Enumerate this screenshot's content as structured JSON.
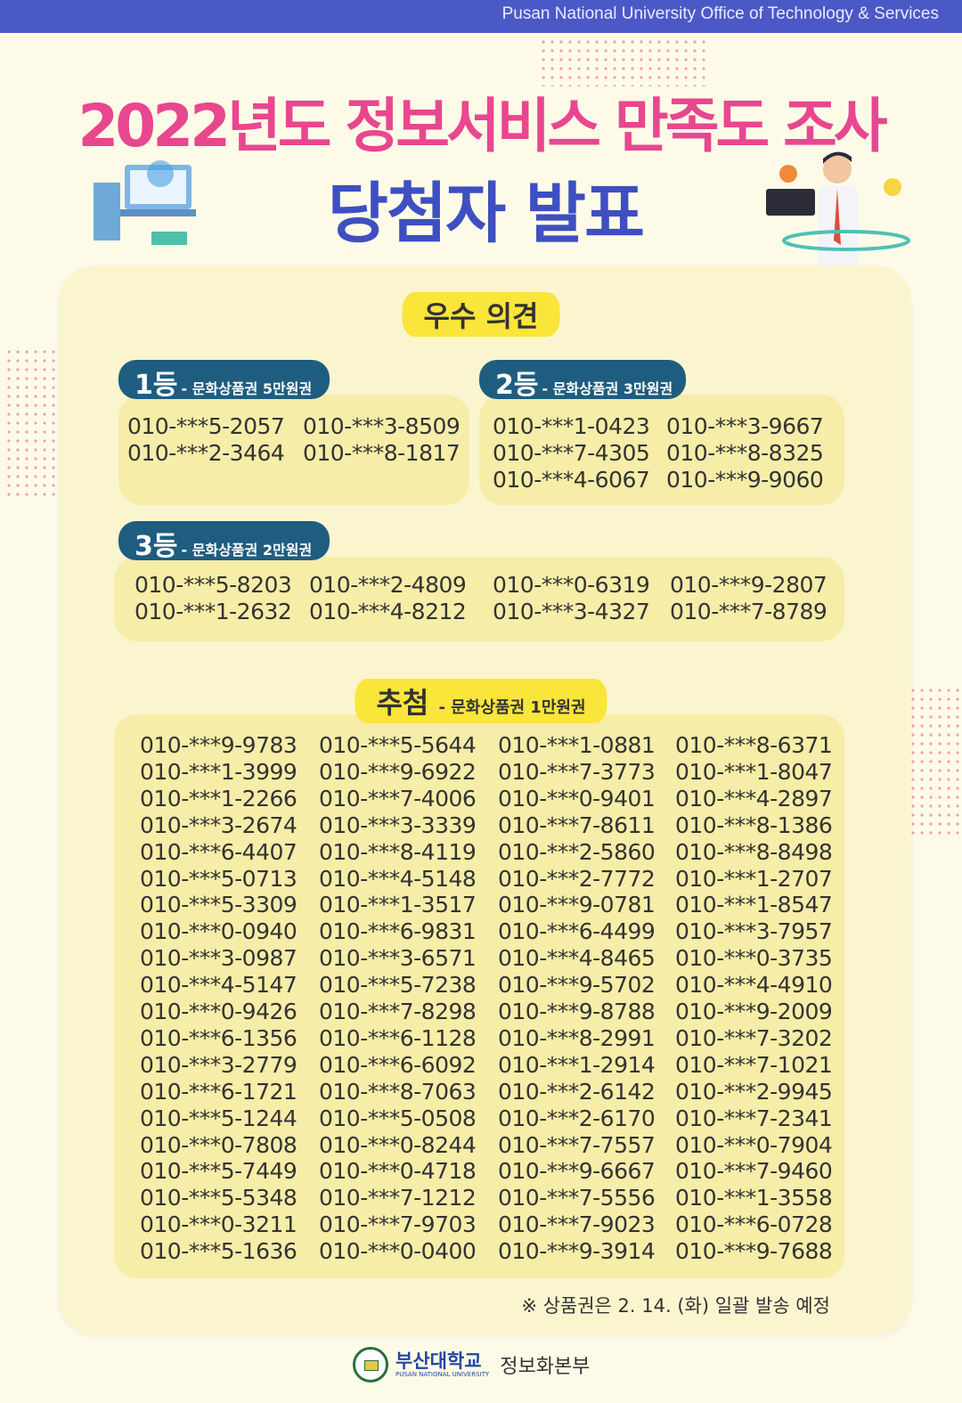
{
  "header": {
    "org": "Pusan National University Office of Technology & Services"
  },
  "title": {
    "line1": "2022년도 정보서비스 만족도 조사",
    "line2": "당첨자 발표"
  },
  "colors": {
    "header_bar": "#4b59c6",
    "title_pink": "#e8478f",
    "title_blue": "#3e4fc1",
    "badge": "#1f5d80",
    "highlight": "#fae53a",
    "box": "#f6eda8"
  },
  "excellent": {
    "heading": "우수 의견",
    "prizes": [
      {
        "rank": "1등",
        "prize": "- 문화상품권 5만원권",
        "numbers": [
          "010-***5-2057",
          "010-***3-8509",
          "010-***2-3464",
          "010-***8-1817"
        ]
      },
      {
        "rank": "2등",
        "prize": "- 문화상품권 3만원권",
        "numbers": [
          "010-***1-0423",
          "010-***3-9667",
          "010-***7-4305",
          "010-***8-8325",
          "010-***4-6067",
          "010-***9-9060"
        ]
      },
      {
        "rank": "3등",
        "prize": "- 문화상품권 2만원권",
        "numbers": [
          "010-***5-8203",
          "010-***2-4809",
          "010-***0-6319",
          "010-***9-2807",
          "010-***1-2632",
          "010-***4-8212",
          "010-***3-4327",
          "010-***7-8789"
        ]
      }
    ]
  },
  "draw": {
    "heading": "추첨",
    "prize": "- 문화상품권 1만원권",
    "columns": [
      [
        "010-***9-9783",
        "010-***1-3999",
        "010-***1-2266",
        "010-***3-2674",
        "010-***6-4407",
        "010-***5-0713",
        "010-***5-3309",
        "010-***0-0940",
        "010-***3-0987",
        "010-***4-5147",
        "010-***0-9426",
        "010-***6-1356",
        "010-***3-2779",
        "010-***6-1721",
        "010-***5-1244",
        "010-***0-7808",
        "010-***5-7449",
        "010-***5-5348",
        "010-***0-3211",
        "010-***5-1636"
      ],
      [
        "010-***5-5644",
        "010-***9-6922",
        "010-***7-4006",
        "010-***3-3339",
        "010-***8-4119",
        "010-***4-5148",
        "010-***1-3517",
        "010-***6-9831",
        "010-***3-6571",
        "010-***5-7238",
        "010-***7-8298",
        "010-***6-1128",
        "010-***6-6092",
        "010-***8-7063",
        "010-***5-0508",
        "010-***0-8244",
        "010-***0-4718",
        "010-***7-1212",
        "010-***7-9703",
        "010-***0-0400"
      ],
      [
        "010-***1-0881",
        "010-***7-3773",
        "010-***0-9401",
        "010-***7-8611",
        "010-***2-5860",
        "010-***2-7772",
        "010-***9-0781",
        "010-***6-4499",
        "010-***4-8465",
        "010-***9-5702",
        "010-***9-8788",
        "010-***8-2991",
        "010-***1-2914",
        "010-***2-6142",
        "010-***2-6170",
        "010-***7-7557",
        "010-***9-6667",
        "010-***7-5556",
        "010-***7-9023",
        "010-***9-3914"
      ],
      [
        "010-***8-6371",
        "010-***1-8047",
        "010-***4-2897",
        "010-***8-1386",
        "010-***8-8498",
        "010-***1-2707",
        "010-***1-8547",
        "010-***3-7957",
        "010-***0-3735",
        "010-***4-4910",
        "010-***9-2009",
        "010-***7-3202",
        "010-***7-1021",
        "010-***2-9945",
        "010-***7-2341",
        "010-***0-7904",
        "010-***7-9460",
        "010-***1-3558",
        "010-***6-0728",
        "010-***9-7688"
      ]
    ]
  },
  "note": "※ 상품권은 2. 14. (화) 일괄 발송 예정",
  "footer": {
    "univ": "부산대학교",
    "univ_en": "PUSAN NATIONAL UNIVERSITY",
    "dept": "정보화본부"
  }
}
